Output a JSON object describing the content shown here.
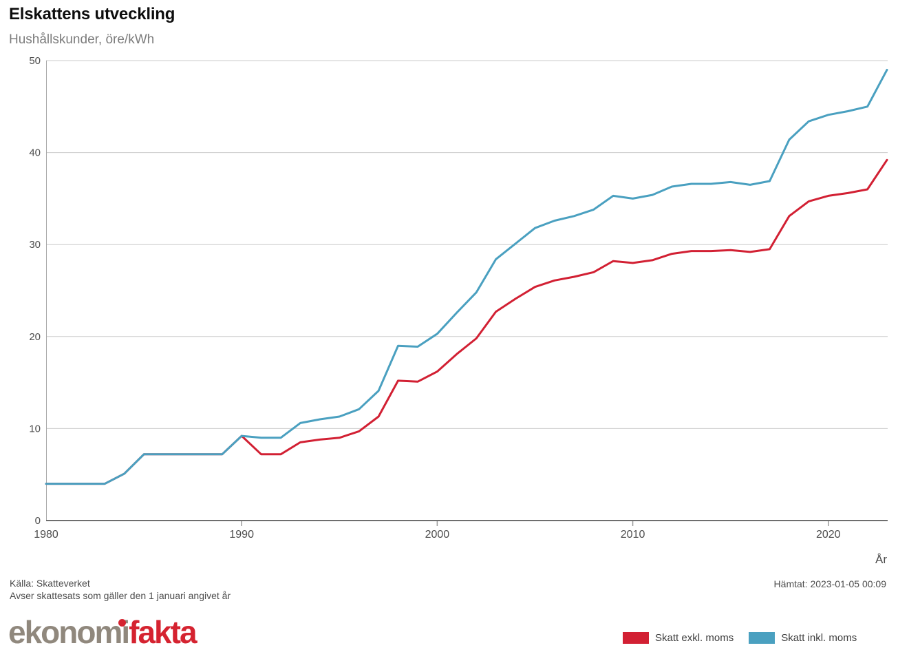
{
  "header": {
    "title": "Elskattens utveckling",
    "subtitle": "Hushållskunder, öre/kWh"
  },
  "footer": {
    "source_line1": "Källa: Skatteverket",
    "source_line2": "Avser skattesats som gäller den 1 januari angivet år",
    "retrieved": "Hämtat: 2023-01-05 00:09"
  },
  "logo": {
    "word_gray": "ekonomi",
    "word_red": "fakta",
    "gray_color": "#8b8277",
    "red_color": "#d52330"
  },
  "legend": [
    {
      "label": "Skatt exkl. moms",
      "color": "#d22033"
    },
    {
      "label": "Skatt inkl. moms",
      "color": "#4aa0c0"
    }
  ],
  "chart_data": {
    "type": "line",
    "title": "Elskattens utveckling",
    "subtitle": "Hushållskunder, öre/kWh",
    "xlabel": "År",
    "ylabel": "öre/kWh",
    "xlim": [
      1980,
      2023
    ],
    "ylim": [
      0,
      50
    ],
    "xticks": [
      1980,
      1990,
      2000,
      2010,
      2020
    ],
    "yticks": [
      0,
      10,
      20,
      30,
      40,
      50
    ],
    "grid": "horizontal",
    "legend_position": "bottom-right",
    "x": [
      1980,
      1981,
      1982,
      1983,
      1984,
      1985,
      1986,
      1987,
      1988,
      1989,
      1990,
      1991,
      1992,
      1993,
      1994,
      1995,
      1996,
      1997,
      1998,
      1999,
      2000,
      2001,
      2002,
      2003,
      2004,
      2005,
      2006,
      2007,
      2008,
      2009,
      2010,
      2011,
      2012,
      2013,
      2014,
      2015,
      2016,
      2017,
      2018,
      2019,
      2020,
      2021,
      2022,
      2023
    ],
    "series": [
      {
        "name": "Skatt exkl. moms",
        "color": "#d22033",
        "values": [
          4.0,
          4.0,
          4.0,
          4.0,
          5.1,
          7.2,
          7.2,
          7.2,
          7.2,
          7.2,
          9.2,
          7.2,
          7.2,
          8.5,
          8.8,
          9.0,
          9.7,
          11.3,
          15.2,
          15.1,
          16.2,
          18.1,
          19.8,
          22.7,
          24.1,
          25.4,
          26.1,
          26.5,
          27.0,
          28.2,
          28.0,
          28.3,
          29.0,
          29.3,
          29.3,
          29.4,
          29.2,
          29.5,
          33.1,
          34.7,
          35.3,
          35.6,
          36.0,
          39.2
        ]
      },
      {
        "name": "Skatt inkl. moms",
        "color": "#4aa0c0",
        "values": [
          4.0,
          4.0,
          4.0,
          4.0,
          5.1,
          7.2,
          7.2,
          7.2,
          7.2,
          7.2,
          9.2,
          9.0,
          9.0,
          10.6,
          11.0,
          11.3,
          12.1,
          14.1,
          19.0,
          18.9,
          20.3,
          22.6,
          24.8,
          28.4,
          30.1,
          31.8,
          32.6,
          33.1,
          33.8,
          35.3,
          35.0,
          35.4,
          36.3,
          36.6,
          36.6,
          36.8,
          36.5,
          36.9,
          41.4,
          43.4,
          44.1,
          44.5,
          45.0,
          49.0
        ]
      }
    ]
  }
}
